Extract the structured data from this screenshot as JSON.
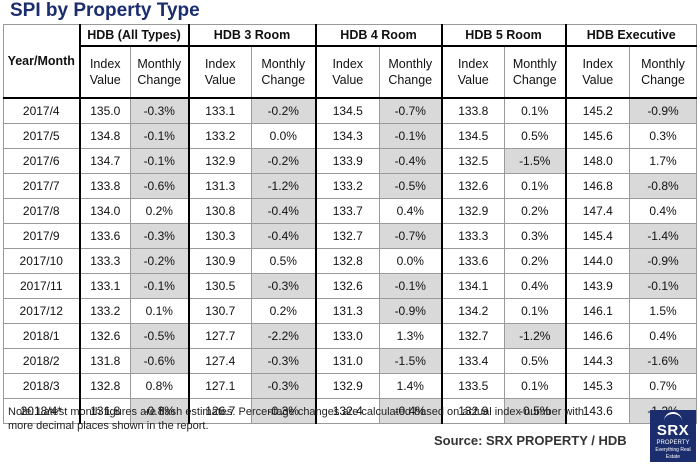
{
  "title": "SPI by Property Type",
  "table": {
    "corner": "Year/Month",
    "groups": [
      "HDB (All Types)",
      "HDB 3 Room",
      "HDB 4 Room",
      "HDB 5 Room",
      "HDB Executive"
    ],
    "subheaders": {
      "index": [
        "Index",
        "Value"
      ],
      "change": [
        "Monthly",
        "Change"
      ]
    },
    "rows": [
      {
        "month": "2017/4",
        "cells": [
          "135.0",
          "-0.3%",
          "133.1",
          "-0.2%",
          "134.5",
          "-0.7%",
          "133.8",
          "0.1%",
          "145.2",
          "-0.9%"
        ]
      },
      {
        "month": "2017/5",
        "cells": [
          "134.8",
          "-0.1%",
          "133.2",
          "0.0%",
          "134.3",
          "-0.1%",
          "134.5",
          "0.5%",
          "145.6",
          "0.3%"
        ]
      },
      {
        "month": "2017/6",
        "cells": [
          "134.7",
          "-0.1%",
          "132.9",
          "-0.2%",
          "133.9",
          "-0.4%",
          "132.5",
          "-1.5%",
          "148.0",
          "1.7%"
        ]
      },
      {
        "month": "2017/7",
        "cells": [
          "133.8",
          "-0.6%",
          "131.3",
          "-1.2%",
          "133.2",
          "-0.5%",
          "132.6",
          "0.1%",
          "146.8",
          "-0.8%"
        ]
      },
      {
        "month": "2017/8",
        "cells": [
          "134.0",
          "0.2%",
          "130.8",
          "-0.4%",
          "133.7",
          "0.4%",
          "132.9",
          "0.2%",
          "147.4",
          "0.4%"
        ]
      },
      {
        "month": "2017/9",
        "cells": [
          "133.6",
          "-0.3%",
          "130.3",
          "-0.4%",
          "132.7",
          "-0.7%",
          "133.3",
          "0.3%",
          "145.4",
          "-1.4%"
        ]
      },
      {
        "month": "2017/10",
        "cells": [
          "133.3",
          "-0.2%",
          "130.9",
          "0.5%",
          "132.8",
          "0.0%",
          "133.6",
          "0.2%",
          "144.0",
          "-0.9%"
        ]
      },
      {
        "month": "2017/11",
        "cells": [
          "133.1",
          "-0.1%",
          "130.5",
          "-0.3%",
          "132.6",
          "-0.1%",
          "134.1",
          "0.4%",
          "143.9",
          "-0.1%"
        ]
      },
      {
        "month": "2017/12",
        "cells": [
          "133.2",
          "0.1%",
          "130.7",
          "0.2%",
          "131.3",
          "-0.9%",
          "134.2",
          "0.1%",
          "146.1",
          "1.5%"
        ]
      },
      {
        "month": "2018/1",
        "cells": [
          "132.6",
          "-0.5%",
          "127.7",
          "-2.2%",
          "133.0",
          "1.3%",
          "132.7",
          "-1.2%",
          "146.6",
          "0.4%"
        ]
      },
      {
        "month": "2018/2",
        "cells": [
          "131.8",
          "-0.6%",
          "127.4",
          "-0.3%",
          "131.0",
          "-1.5%",
          "133.4",
          "0.5%",
          "144.3",
          "-1.6%"
        ]
      },
      {
        "month": "2018/3",
        "cells": [
          "132.8",
          "0.8%",
          "127.1",
          "-0.3%",
          "132.9",
          "1.4%",
          "133.5",
          "0.1%",
          "145.3",
          "0.7%"
        ]
      },
      {
        "month": "2018/4*",
        "cells": [
          "131.8",
          "-0.8%",
          "126.7",
          "-0.3%",
          "132.4",
          "-0.4%",
          "132.9",
          "-0.5%",
          "143.6",
          "-1.2%"
        ]
      }
    ]
  },
  "note": "Note: Latest month figures are flash estimates. Percentage changes are calculated based on actual index number with more decimal places shown in the report.",
  "source": "Source:  SRX PROPERTY / HDB",
  "logo": {
    "main": "SRX",
    "sub": "PROPERTY",
    "tagline": "Everything Real Estate"
  },
  "colors": {
    "title": "#1c2d6e",
    "shade": "#d9d9d9",
    "logo_bg": "#1c2d6e"
  }
}
